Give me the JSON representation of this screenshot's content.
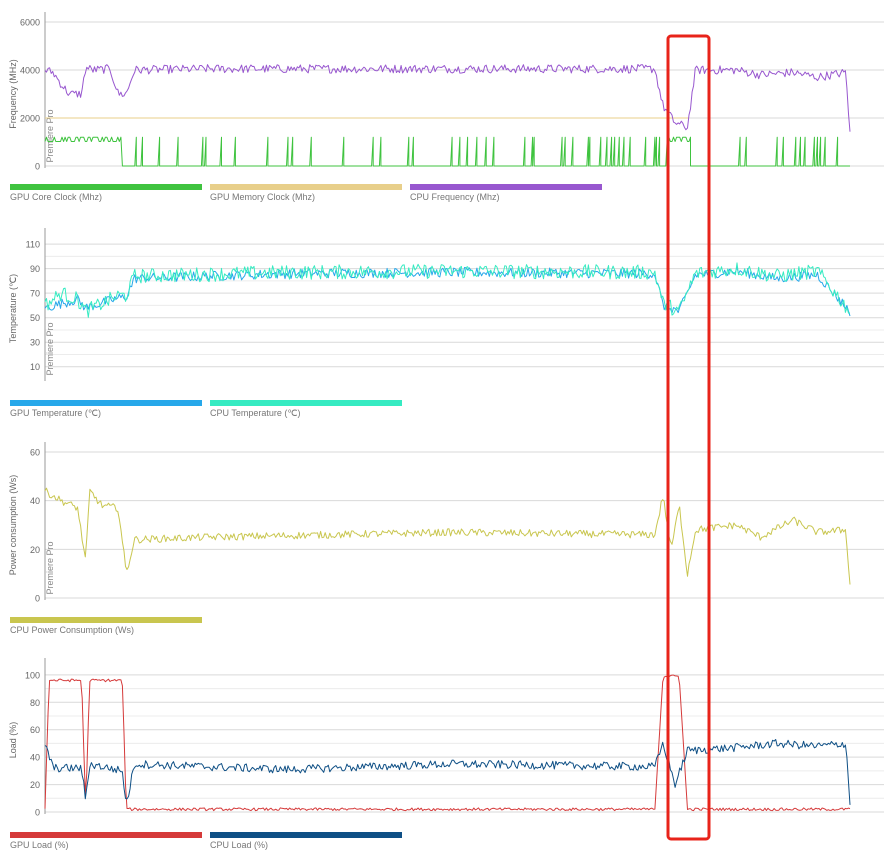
{
  "chart_data": [
    {
      "type": "line",
      "ylabel": "Frequency (MHz)",
      "annotation": "Premiere Pro",
      "ylim": [
        0,
        6000
      ],
      "yticks": [
        0,
        2000,
        4000,
        6000
      ],
      "series": [
        {
          "name": "GPU Core Clock (Mhz)",
          "color": "#3fc33f",
          "pattern": "spikes",
          "base": 0,
          "level": 1200,
          "segments": [
            [
              0,
              0.095,
              1200
            ],
            [
              0.5,
              1.0,
              0
            ]
          ],
          "runs": [
            [
              0.0,
              0.095,
              1200
            ],
            [
              0.775,
              0.8,
              1200
            ]
          ],
          "spike_density": 0.12
        },
        {
          "name": "GPU Memory Clock (Mhz)",
          "color": "#e8cf8a",
          "pattern": "flat",
          "segments": [
            [
              0.0,
              0.8,
              2000
            ]
          ]
        },
        {
          "name": "CPU Frequency (Mhz)",
          "color": "#9857cf",
          "pattern": "noisy",
          "points": [
            [
              0,
              4000
            ],
            [
              0.01,
              3900
            ],
            [
              0.02,
              3400
            ],
            [
              0.03,
              3000
            ],
            [
              0.045,
              3000
            ],
            [
              0.05,
              4100
            ],
            [
              0.06,
              4000
            ],
            [
              0.08,
              4050
            ],
            [
              0.09,
              3000
            ],
            [
              0.1,
              3000
            ],
            [
              0.11,
              4000
            ],
            [
              0.2,
              4050
            ],
            [
              0.5,
              4050
            ],
            [
              0.75,
              4050
            ],
            [
              0.76,
              2500
            ],
            [
              0.775,
              1800
            ],
            [
              0.79,
              1600
            ],
            [
              0.8,
              4000
            ],
            [
              0.85,
              4000
            ],
            [
              0.88,
              3800
            ],
            [
              0.92,
              3900
            ],
            [
              0.95,
              3700
            ],
            [
              0.985,
              3900
            ],
            [
              0.99,
              1300
            ]
          ],
          "noise": 180
        }
      ]
    },
    {
      "type": "line",
      "ylabel": "Temperature (℃)",
      "annotation": "Premiere Pro",
      "ylim": [
        0,
        115
      ],
      "yticks": [
        10,
        30,
        50,
        70,
        90,
        110
      ],
      "series": [
        {
          "name": "GPU Temperature (℃)",
          "color": "#27a8ea",
          "pattern": "noisy",
          "points": [
            [
              0,
              58
            ],
            [
              0.04,
              65
            ],
            [
              0.05,
              58
            ],
            [
              0.09,
              66
            ],
            [
              0.1,
              67
            ],
            [
              0.11,
              82
            ],
            [
              0.3,
              86
            ],
            [
              0.5,
              87
            ],
            [
              0.75,
              86
            ],
            [
              0.76,
              60
            ],
            [
              0.78,
              55
            ],
            [
              0.8,
              85
            ],
            [
              0.85,
              88
            ],
            [
              0.9,
              82
            ],
            [
              0.95,
              85
            ],
            [
              0.99,
              55
            ]
          ],
          "noise": 4
        },
        {
          "name": "CPU Temperature (℃)",
          "color": "#36ebc2",
          "pattern": "noisy",
          "points": [
            [
              0,
              60
            ],
            [
              0.02,
              70
            ],
            [
              0.04,
              65
            ],
            [
              0.05,
              55
            ],
            [
              0.09,
              68
            ],
            [
              0.1,
              68
            ],
            [
              0.11,
              84
            ],
            [
              0.3,
              87
            ],
            [
              0.5,
              88
            ],
            [
              0.75,
              87
            ],
            [
              0.76,
              62
            ],
            [
              0.78,
              55
            ],
            [
              0.8,
              86
            ],
            [
              0.85,
              90
            ],
            [
              0.9,
              84
            ],
            [
              0.95,
              88
            ],
            [
              0.99,
              55
            ]
          ],
          "noise": 6
        }
      ]
    },
    {
      "type": "line",
      "ylabel": "Power consumption (Ws)",
      "annotation": "Premiere Pro",
      "ylim": [
        0,
        60
      ],
      "yticks": [
        0,
        20,
        40,
        60
      ],
      "series": [
        {
          "name": "CPU Power Consumption (Ws)",
          "color": "#c9c64f",
          "pattern": "noisy",
          "points": [
            [
              0,
              44
            ],
            [
              0.02,
              40
            ],
            [
              0.04,
              37
            ],
            [
              0.05,
              15
            ],
            [
              0.055,
              44
            ],
            [
              0.07,
              38
            ],
            [
              0.09,
              37
            ],
            [
              0.1,
              10
            ],
            [
              0.11,
              24
            ],
            [
              0.2,
              25
            ],
            [
              0.5,
              27
            ],
            [
              0.75,
              26
            ],
            [
              0.76,
              42
            ],
            [
              0.77,
              20
            ],
            [
              0.78,
              38
            ],
            [
              0.79,
              10
            ],
            [
              0.8,
              28
            ],
            [
              0.85,
              30
            ],
            [
              0.88,
              25
            ],
            [
              0.92,
              32
            ],
            [
              0.95,
              27
            ],
            [
              0.985,
              28
            ],
            [
              0.99,
              5
            ]
          ],
          "noise": 1.5
        }
      ]
    },
    {
      "type": "line",
      "ylabel": "Load (%)",
      "ylim": [
        0,
        105
      ],
      "yticks": [
        0,
        20,
        40,
        60,
        80,
        100
      ],
      "series": [
        {
          "name": "GPU Load (%)",
          "color": "#d53a3a",
          "pattern": "noisy",
          "points": [
            [
              0,
              2
            ],
            [
              0.005,
              96
            ],
            [
              0.045,
              96
            ],
            [
              0.05,
              3
            ],
            [
              0.055,
              96
            ],
            [
              0.095,
              96
            ],
            [
              0.1,
              2
            ],
            [
              0.75,
              2
            ],
            [
              0.76,
              99
            ],
            [
              0.78,
              99
            ],
            [
              0.79,
              2
            ],
            [
              0.99,
              2
            ]
          ],
          "noise": 1
        },
        {
          "name": "CPU Load (%)",
          "color": "#0e4f85",
          "pattern": "noisy",
          "points": [
            [
              0,
              50
            ],
            [
              0.01,
              32
            ],
            [
              0.045,
              32
            ],
            [
              0.05,
              8
            ],
            [
              0.055,
              35
            ],
            [
              0.095,
              30
            ],
            [
              0.1,
              5
            ],
            [
              0.11,
              35
            ],
            [
              0.2,
              33
            ],
            [
              0.3,
              31
            ],
            [
              0.5,
              35
            ],
            [
              0.75,
              33
            ],
            [
              0.76,
              50
            ],
            [
              0.775,
              20
            ],
            [
              0.79,
              45
            ],
            [
              0.8,
              45
            ],
            [
              0.85,
              47
            ],
            [
              0.9,
              50
            ],
            [
              0.95,
              48
            ],
            [
              0.985,
              50
            ],
            [
              0.99,
              5
            ]
          ],
          "noise": 3
        }
      ]
    }
  ],
  "highlight": {
    "color": "#e8231a"
  }
}
